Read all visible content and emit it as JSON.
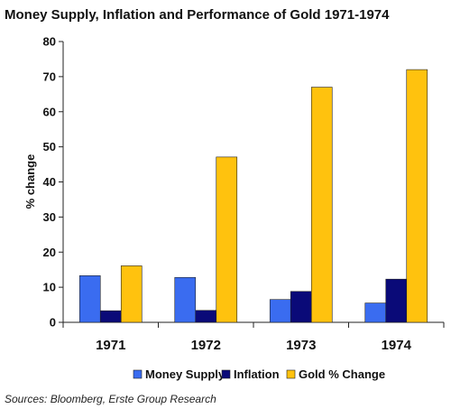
{
  "chart_data": {
    "type": "bar",
    "title": "Money Supply, Inflation and Performance of Gold 1971-1974",
    "categories": [
      "1971",
      "1972",
      "1973",
      "1974"
    ],
    "series": [
      {
        "name": "Money Supply",
        "color": "#3a6cf0",
        "values": [
          13.3,
          12.8,
          6.5,
          5.5
        ]
      },
      {
        "name": "Inflation",
        "color": "#0a0a78",
        "values": [
          3.3,
          3.4,
          8.8,
          12.3
        ]
      },
      {
        "name": "Gold % Change",
        "color": "#ffc20e",
        "values": [
          16.1,
          47.1,
          67.0,
          72.0
        ]
      }
    ],
    "xlabel": "",
    "ylabel": "% change",
    "ylim": [
      0,
      80
    ],
    "yticks": [
      0,
      10,
      20,
      30,
      40,
      50,
      60,
      70,
      80
    ],
    "grid": false,
    "legend_position": "bottom"
  },
  "footer": {
    "source": "Sources: Bloomberg, Erste Group Research"
  }
}
